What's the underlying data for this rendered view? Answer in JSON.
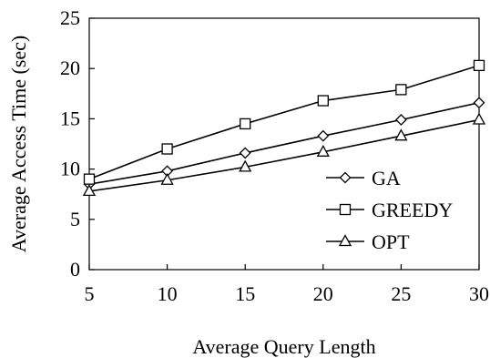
{
  "chart_data": {
    "type": "line",
    "title": "",
    "xlabel": "Average Query Length",
    "ylabel": "Average Access Time (sec)",
    "x": [
      5,
      10,
      15,
      20,
      25,
      30
    ],
    "xlim": [
      5,
      30
    ],
    "ylim": [
      0,
      25
    ],
    "xticks": [
      "5",
      "10",
      "15",
      "20",
      "25",
      "30"
    ],
    "yticks": [
      "0",
      "5",
      "10",
      "15",
      "20",
      "25"
    ],
    "grid": false,
    "legend_position": "right",
    "series": [
      {
        "name": "GA",
        "marker": "diamond",
        "values": [
          8.5,
          9.8,
          11.6,
          13.3,
          14.9,
          16.6
        ]
      },
      {
        "name": "GREEDY",
        "marker": "square",
        "values": [
          9.0,
          12.0,
          14.5,
          16.8,
          17.9,
          20.3
        ]
      },
      {
        "name": "OPT",
        "marker": "triangle",
        "values": [
          7.8,
          8.9,
          10.2,
          11.7,
          13.3,
          14.9
        ]
      }
    ],
    "line_color": "#000000"
  }
}
